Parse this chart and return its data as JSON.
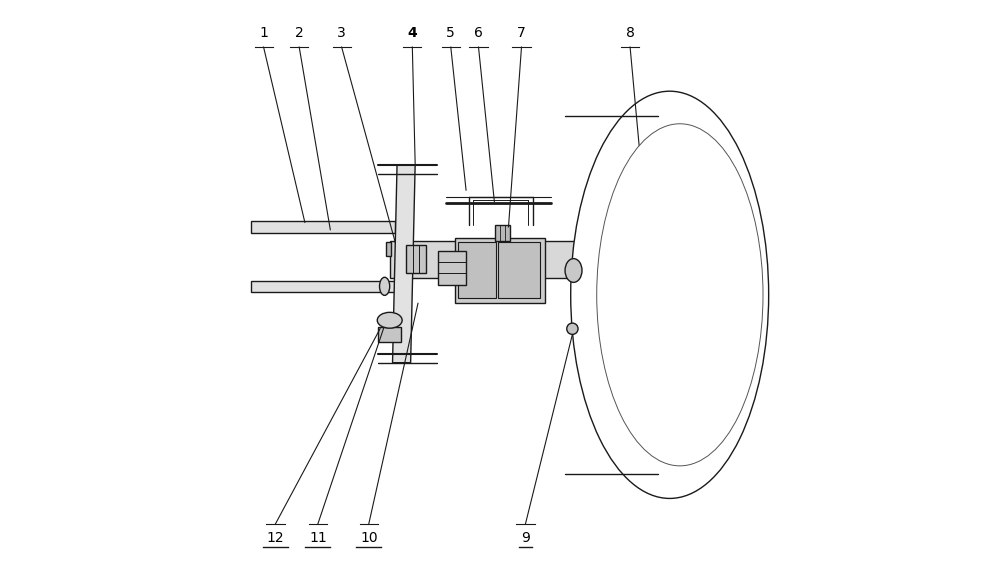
{
  "background_color": "#ffffff",
  "line_color": "#1a1a1a",
  "label_color": "#000000",
  "fig_width": 10.0,
  "fig_height": 5.67,
  "dpi": 100
}
